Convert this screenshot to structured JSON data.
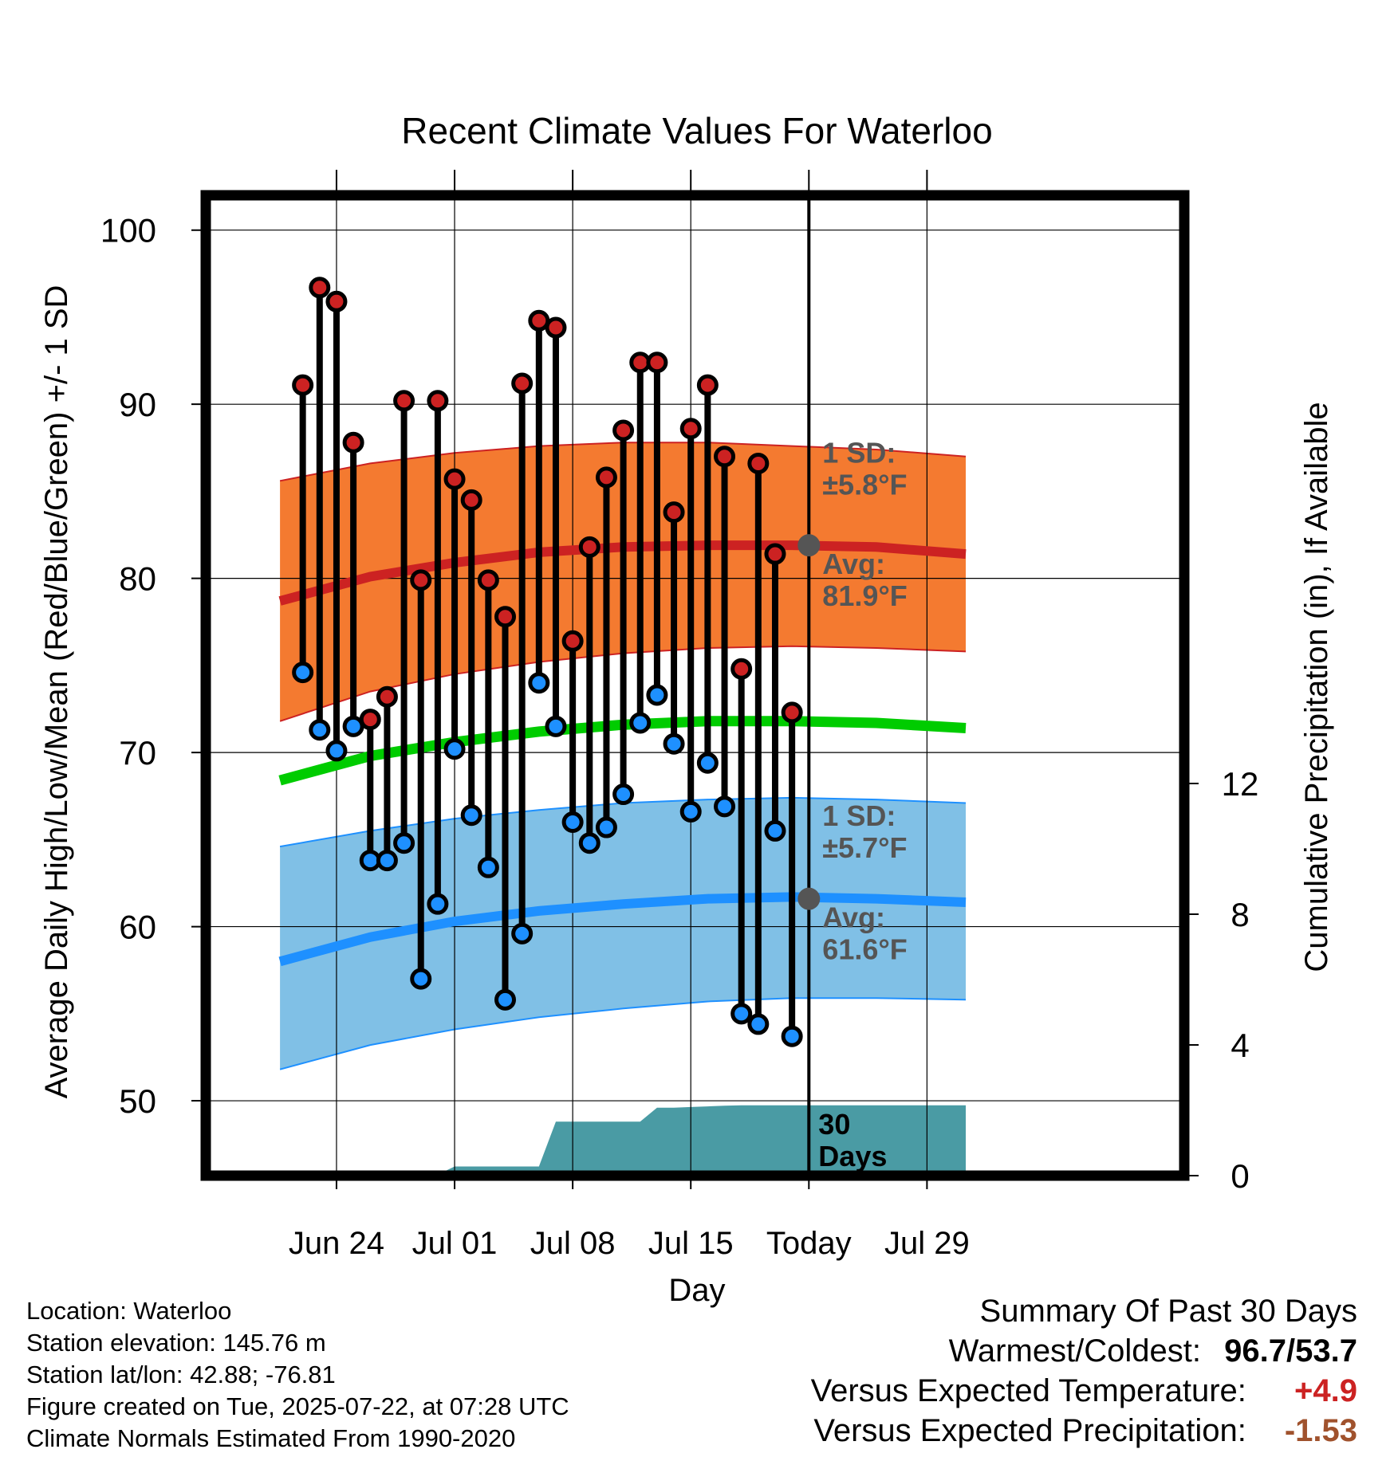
{
  "chart_data": {
    "type": "line",
    "title": "Recent Climate Values For Waterloo",
    "xlabel": "Day",
    "ylabel": "Average Daily High/Low/Mean (Red/Blue/Green) +/- 1 SD",
    "y2label": "Cumulative Precipitation (in), If Available",
    "x_range": [
      -4.75,
      53.25
    ],
    "ylim": [
      45.7,
      102
    ],
    "y_ticks": [
      50,
      60,
      70,
      80,
      90,
      100
    ],
    "y_minor_step": 5,
    "y2lim": [
      0,
      30
    ],
    "y2_ticks": [
      0,
      4,
      8,
      12
    ],
    "grid": true,
    "x_ticks": [
      {
        "x": 3,
        "label": "Jun 24"
      },
      {
        "x": 10,
        "label": "Jul 01"
      },
      {
        "x": 17,
        "label": "Jul 08"
      },
      {
        "x": 24,
        "label": "Jul 15"
      },
      {
        "x": 31,
        "label": "Today"
      },
      {
        "x": 38,
        "label": "Jul 29"
      }
    ],
    "today_x": 31,
    "window_label": "30 Days",
    "normal_x": [
      -0.35,
      5,
      10,
      15,
      20,
      25,
      30,
      35,
      40.3
    ],
    "normal_high": [
      78.7,
      80.1,
      80.9,
      81.5,
      81.8,
      81.9,
      81.9,
      81.8,
      81.4
    ],
    "normal_low": [
      58.0,
      59.4,
      60.3,
      60.9,
      61.3,
      61.6,
      61.7,
      61.6,
      61.4
    ],
    "normal_mean": [
      68.4,
      69.8,
      70.6,
      71.2,
      71.6,
      71.8,
      71.8,
      71.7,
      71.4
    ],
    "high_band_upper": [
      85.6,
      86.6,
      87.2,
      87.6,
      87.8,
      87.8,
      87.6,
      87.4,
      87.0
    ],
    "high_band_lower": [
      71.8,
      73.5,
      74.5,
      75.2,
      75.7,
      76.0,
      76.1,
      76.0,
      75.8
    ],
    "low_band_upper": [
      64.6,
      65.5,
      66.2,
      66.7,
      67.1,
      67.3,
      67.4,
      67.3,
      67.1
    ],
    "low_band_lower": [
      51.8,
      53.2,
      54.1,
      54.8,
      55.3,
      55.7,
      55.9,
      55.9,
      55.8
    ],
    "precip_x": [
      -0.35,
      6,
      7,
      8,
      9,
      10,
      11,
      12,
      13,
      14,
      15,
      16,
      17,
      18,
      19,
      20,
      21,
      22,
      23,
      24,
      25,
      26,
      27,
      28,
      29,
      30,
      31,
      40.3
    ],
    "precip_cumulative": [
      0.0,
      0.0,
      0.01,
      0.02,
      0.03,
      0.28,
      0.28,
      0.28,
      0.28,
      0.28,
      0.28,
      1.65,
      1.65,
      1.65,
      1.65,
      1.65,
      1.65,
      2.08,
      2.08,
      2.1,
      2.12,
      2.14,
      2.15,
      2.15,
      2.15,
      2.15,
      2.15,
      2.15
    ],
    "daily_x": [
      1,
      2,
      3,
      4,
      5,
      6,
      7,
      8,
      9,
      10,
      11,
      12,
      13,
      14,
      15,
      16,
      17,
      18,
      19,
      20,
      21,
      22,
      23,
      24,
      25,
      26,
      27,
      28,
      29,
      30
    ],
    "daily_high": [
      91.1,
      96.7,
      95.9,
      87.8,
      71.9,
      73.2,
      90.2,
      79.9,
      90.2,
      85.7,
      84.5,
      79.9,
      77.8,
      91.2,
      94.8,
      94.4,
      76.4,
      81.8,
      85.8,
      88.5,
      92.4,
      92.4,
      83.8,
      88.6,
      91.1,
      87.0,
      74.8,
      86.6,
      81.4,
      72.3
    ],
    "daily_low": [
      74.6,
      71.3,
      70.1,
      71.5,
      63.8,
      63.8,
      64.8,
      57.0,
      61.3,
      70.2,
      66.4,
      63.4,
      55.8,
      59.6,
      74.0,
      71.5,
      66.0,
      64.8,
      65.7,
      67.6,
      71.7,
      73.3,
      70.5,
      66.6,
      69.4,
      66.9,
      55.0,
      54.4,
      65.5,
      53.7
    ],
    "annotations": {
      "high_sd_title": "1 SD:",
      "high_sd_value": "±5.8°F",
      "high_avg_title": "Avg:",
      "high_avg_value": "81.9°F",
      "low_sd_title": "1 SD:",
      "low_sd_value": "±5.7°F",
      "low_avg_title": "Avg:",
      "low_avg_value": "61.6°F",
      "high_avg": 81.9,
      "low_avg": 61.6
    },
    "colors": {
      "high": "#cc2222",
      "high_band": "#f47a30",
      "low": "#1e90ff",
      "low_band": "#80c0e6",
      "mean": "#00cc00",
      "precip": "#4a9ba4",
      "annotation": "#555555"
    }
  },
  "info": {
    "location": "Location: Waterloo",
    "elevation": "Station elevation: 145.76 m",
    "latlon": "Station lat/lon: 42.88; -76.81",
    "created": "Figure created on Tue, 2025-07-22, at 07:28 UTC",
    "normals": "Climate Normals Estimated From 1990-2020"
  },
  "summary": {
    "title": "Summary Of Past 30 Days",
    "warm_cold_label": "Warmest/Coldest:",
    "warmest": "96.7",
    "sep": "/",
    "coldest": "53.7",
    "temp_label": "Versus Expected Temperature:",
    "temp_value": "+4.9",
    "temp_color": "#cc2222",
    "precip_label": "Versus Expected Precipitation:",
    "precip_value": "-1.53",
    "precip_color": "#a0522d"
  }
}
